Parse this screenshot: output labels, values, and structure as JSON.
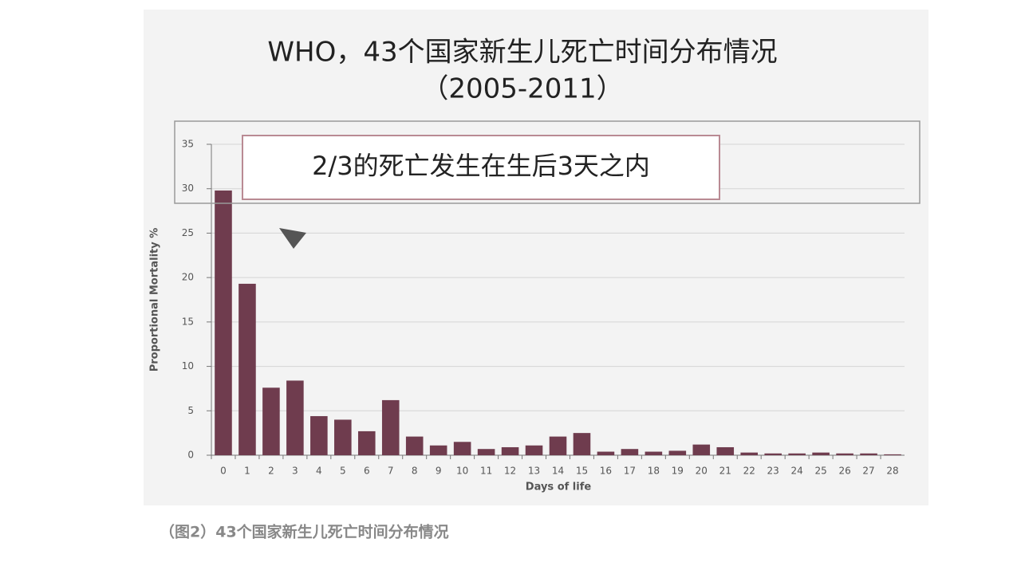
{
  "chart_data": {
    "type": "bar",
    "title": "WHO，43个国家新生儿死亡时间分布情况",
    "subtitle": "（2005-2011）",
    "annotation": "2/3的死亡发生在生后3天之内",
    "x_label": "Days of life",
    "y_label": "Proportional Mortality %",
    "categories": [
      "0",
      "1",
      "2",
      "3",
      "4",
      "5",
      "6",
      "7",
      "8",
      "9",
      "10",
      "11",
      "12",
      "13",
      "14",
      "15",
      "16",
      "17",
      "18",
      "19",
      "20",
      "21",
      "22",
      "23",
      "24",
      "25",
      "26",
      "27",
      "28"
    ],
    "values": [
      29.8,
      19.3,
      7.6,
      8.4,
      4.4,
      4.0,
      2.7,
      6.2,
      2.1,
      1.1,
      1.5,
      0.7,
      0.9,
      1.1,
      2.1,
      2.5,
      0.4,
      0.7,
      0.4,
      0.5,
      1.2,
      0.9,
      0.3,
      0.2,
      0.2,
      0.3,
      0.2,
      0.2,
      0.1
    ],
    "color": "#6f3c4e",
    "ylim": [
      0,
      35
    ],
    "yticks": [
      0,
      5,
      10,
      15,
      20,
      25,
      30,
      35
    ],
    "grid": true
  },
  "caption": "（图2）43个国家新生儿死亡时间分布情况"
}
